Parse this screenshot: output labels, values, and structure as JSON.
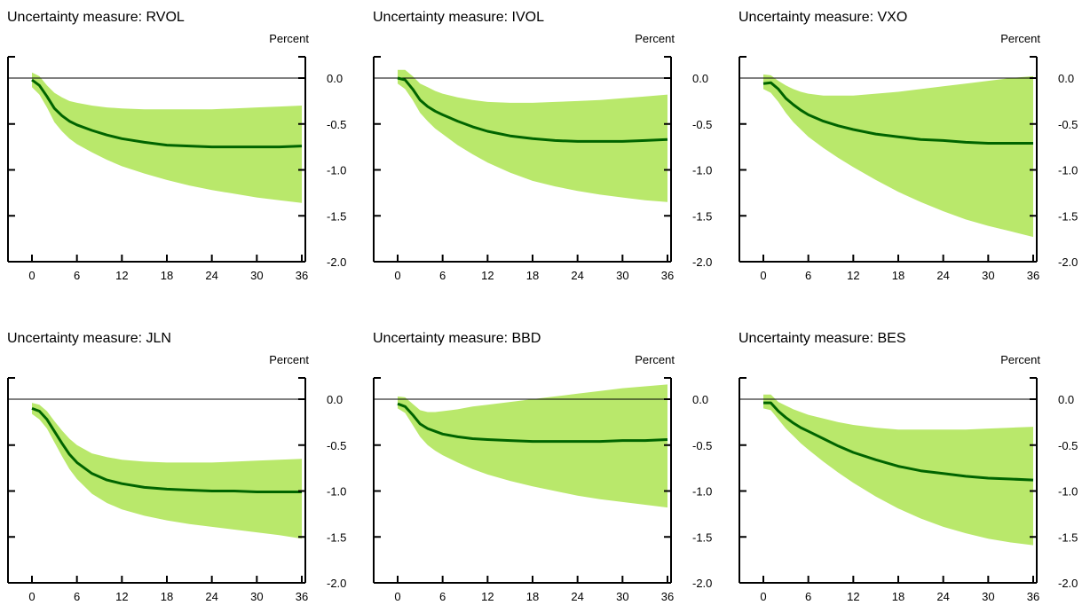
{
  "colors": {
    "band": "#b9e86b",
    "line": "#006400",
    "axis": "#000000"
  },
  "chart_data": [
    {
      "type": "area",
      "title": "Uncertainty measure: RVOL",
      "unit": "Percent",
      "x": [
        0,
        1,
        2,
        3,
        4,
        5,
        6,
        8,
        10,
        12,
        15,
        18,
        21,
        24,
        27,
        30,
        33,
        36
      ],
      "xticks": [
        "0",
        "6",
        "12",
        "18",
        "24",
        "30",
        "36"
      ],
      "yticks": [
        "0.0",
        "-0.5",
        "-1.0",
        "-1.5",
        "-2.0"
      ],
      "xlim": [
        0,
        36
      ],
      "ylim": [
        -2.0,
        0.0
      ],
      "grid": false,
      "series": [
        {
          "role": "median",
          "values": [
            -0.02,
            -0.08,
            -0.2,
            -0.33,
            -0.41,
            -0.47,
            -0.51,
            -0.57,
            -0.62,
            -0.66,
            -0.7,
            -0.73,
            -0.74,
            -0.75,
            -0.75,
            -0.75,
            -0.75,
            -0.74
          ]
        },
        {
          "role": "upper",
          "values": [
            0.06,
            0.02,
            -0.08,
            -0.16,
            -0.21,
            -0.25,
            -0.27,
            -0.3,
            -0.32,
            -0.33,
            -0.34,
            -0.34,
            -0.34,
            -0.34,
            -0.33,
            -0.32,
            -0.31,
            -0.3
          ]
        },
        {
          "role": "lower",
          "values": [
            -0.1,
            -0.18,
            -0.32,
            -0.48,
            -0.58,
            -0.66,
            -0.72,
            -0.81,
            -0.89,
            -0.96,
            -1.04,
            -1.11,
            -1.17,
            -1.22,
            -1.26,
            -1.3,
            -1.33,
            -1.36
          ]
        }
      ]
    },
    {
      "type": "area",
      "title": "Uncertainty measure: IVOL",
      "unit": "Percent",
      "x": [
        0,
        1,
        2,
        3,
        4,
        5,
        6,
        8,
        10,
        12,
        15,
        18,
        21,
        24,
        27,
        30,
        33,
        36
      ],
      "xticks": [
        "0",
        "6",
        "12",
        "18",
        "24",
        "30",
        "36"
      ],
      "yticks": [
        "0.0",
        "-0.5",
        "-1.0",
        "-1.5",
        "-2.0"
      ],
      "xlim": [
        0,
        36
      ],
      "ylim": [
        -2.0,
        0.0
      ],
      "grid": false,
      "series": [
        {
          "role": "median",
          "values": [
            0.0,
            -0.02,
            -0.12,
            -0.24,
            -0.31,
            -0.36,
            -0.4,
            -0.47,
            -0.53,
            -0.58,
            -0.63,
            -0.66,
            -0.68,
            -0.69,
            -0.69,
            -0.69,
            -0.68,
            -0.67
          ]
        },
        {
          "role": "upper",
          "values": [
            0.09,
            0.09,
            0.02,
            -0.06,
            -0.1,
            -0.14,
            -0.17,
            -0.21,
            -0.24,
            -0.26,
            -0.27,
            -0.27,
            -0.26,
            -0.25,
            -0.24,
            -0.22,
            -0.2,
            -0.18
          ]
        },
        {
          "role": "lower",
          "values": [
            -0.06,
            -0.12,
            -0.24,
            -0.38,
            -0.47,
            -0.55,
            -0.61,
            -0.73,
            -0.83,
            -0.92,
            -1.03,
            -1.12,
            -1.18,
            -1.23,
            -1.27,
            -1.3,
            -1.33,
            -1.35
          ]
        }
      ]
    },
    {
      "type": "area",
      "title": "Uncertainty measure: VXO",
      "unit": "Percent",
      "x": [
        0,
        1,
        2,
        3,
        4,
        5,
        6,
        8,
        10,
        12,
        15,
        18,
        21,
        24,
        27,
        30,
        33,
        36
      ],
      "xticks": [
        "0",
        "6",
        "12",
        "18",
        "24",
        "30",
        "36"
      ],
      "yticks": [
        "0.0",
        "-0.5",
        "-1.0",
        "-1.5",
        "-2.0"
      ],
      "xlim": [
        0,
        36
      ],
      "ylim": [
        -2.0,
        0.0
      ],
      "grid": false,
      "series": [
        {
          "role": "median",
          "values": [
            -0.06,
            -0.05,
            -0.12,
            -0.22,
            -0.29,
            -0.35,
            -0.4,
            -0.47,
            -0.52,
            -0.56,
            -0.61,
            -0.64,
            -0.67,
            -0.68,
            -0.7,
            -0.71,
            -0.71,
            -0.71
          ]
        },
        {
          "role": "upper",
          "values": [
            0.04,
            0.03,
            -0.03,
            -0.08,
            -0.12,
            -0.15,
            -0.17,
            -0.19,
            -0.19,
            -0.19,
            -0.17,
            -0.15,
            -0.12,
            -0.09,
            -0.06,
            -0.03,
            0.0,
            0.02
          ]
        },
        {
          "role": "lower",
          "values": [
            -0.12,
            -0.16,
            -0.26,
            -0.38,
            -0.48,
            -0.56,
            -0.64,
            -0.76,
            -0.87,
            -0.97,
            -1.11,
            -1.24,
            -1.35,
            -1.45,
            -1.54,
            -1.61,
            -1.67,
            -1.73
          ]
        }
      ]
    },
    {
      "type": "area",
      "title": "Uncertainty measure: JLN",
      "unit": "Percent",
      "x": [
        0,
        1,
        2,
        3,
        4,
        5,
        6,
        8,
        10,
        12,
        15,
        18,
        21,
        24,
        27,
        30,
        33,
        36
      ],
      "xticks": [
        "0",
        "6",
        "12",
        "18",
        "24",
        "30",
        "36"
      ],
      "yticks": [
        "0.0",
        "-0.5",
        "-1.0",
        "-1.5",
        "-2.0"
      ],
      "xlim": [
        0,
        36
      ],
      "ylim": [
        -2.0,
        0.0
      ],
      "grid": false,
      "series": [
        {
          "role": "median",
          "values": [
            -0.1,
            -0.13,
            -0.22,
            -0.35,
            -0.48,
            -0.6,
            -0.69,
            -0.81,
            -0.88,
            -0.92,
            -0.96,
            -0.98,
            -0.99,
            -1.0,
            -1.0,
            -1.01,
            -1.01,
            -1.01
          ]
        },
        {
          "role": "upper",
          "values": [
            -0.04,
            -0.06,
            -0.13,
            -0.24,
            -0.34,
            -0.43,
            -0.5,
            -0.59,
            -0.63,
            -0.66,
            -0.68,
            -0.69,
            -0.69,
            -0.69,
            -0.68,
            -0.67,
            -0.66,
            -0.65
          ]
        },
        {
          "role": "lower",
          "values": [
            -0.16,
            -0.22,
            -0.32,
            -0.47,
            -0.62,
            -0.76,
            -0.87,
            -1.03,
            -1.13,
            -1.2,
            -1.27,
            -1.32,
            -1.36,
            -1.39,
            -1.42,
            -1.45,
            -1.48,
            -1.52
          ]
        }
      ]
    },
    {
      "type": "area",
      "title": "Uncertainty measure: BBD",
      "unit": "Percent",
      "x": [
        0,
        1,
        2,
        3,
        4,
        5,
        6,
        8,
        10,
        12,
        15,
        18,
        21,
        24,
        27,
        30,
        33,
        36
      ],
      "xticks": [
        "0",
        "6",
        "12",
        "18",
        "24",
        "30",
        "36"
      ],
      "yticks": [
        "0.0",
        "-0.5",
        "-1.0",
        "-1.5",
        "-2.0"
      ],
      "xlim": [
        0,
        36
      ],
      "ylim": [
        -2.0,
        0.0
      ],
      "grid": false,
      "series": [
        {
          "role": "median",
          "values": [
            -0.05,
            -0.08,
            -0.17,
            -0.27,
            -0.32,
            -0.35,
            -0.38,
            -0.41,
            -0.43,
            -0.44,
            -0.45,
            -0.46,
            -0.46,
            -0.46,
            -0.46,
            -0.45,
            -0.45,
            -0.44
          ]
        },
        {
          "role": "upper",
          "values": [
            0.03,
            0.02,
            -0.05,
            -0.12,
            -0.14,
            -0.14,
            -0.13,
            -0.11,
            -0.08,
            -0.06,
            -0.03,
            0.0,
            0.03,
            0.06,
            0.09,
            0.12,
            0.14,
            0.16
          ]
        },
        {
          "role": "lower",
          "values": [
            -0.1,
            -0.15,
            -0.28,
            -0.41,
            -0.5,
            -0.56,
            -0.61,
            -0.69,
            -0.76,
            -0.82,
            -0.89,
            -0.95,
            -1.0,
            -1.05,
            -1.09,
            -1.12,
            -1.15,
            -1.18
          ]
        }
      ]
    },
    {
      "type": "area",
      "title": "Uncertainty measure: BES",
      "unit": "Percent",
      "x": [
        0,
        1,
        2,
        3,
        4,
        5,
        6,
        8,
        10,
        12,
        15,
        18,
        21,
        24,
        27,
        30,
        33,
        36
      ],
      "xticks": [
        "0",
        "6",
        "12",
        "18",
        "24",
        "30",
        "36"
      ],
      "yticks": [
        "0.0",
        "-0.5",
        "-1.0",
        "-1.5",
        "-2.0"
      ],
      "xlim": [
        0,
        36
      ],
      "ylim": [
        -2.0,
        0.0
      ],
      "grid": false,
      "series": [
        {
          "role": "median",
          "values": [
            -0.04,
            -0.04,
            -0.13,
            -0.2,
            -0.26,
            -0.31,
            -0.35,
            -0.43,
            -0.51,
            -0.58,
            -0.66,
            -0.73,
            -0.78,
            -0.81,
            -0.84,
            -0.86,
            -0.87,
            -0.88
          ]
        },
        {
          "role": "upper",
          "values": [
            0.05,
            0.05,
            -0.03,
            -0.07,
            -0.11,
            -0.14,
            -0.17,
            -0.21,
            -0.25,
            -0.28,
            -0.31,
            -0.33,
            -0.33,
            -0.33,
            -0.33,
            -0.32,
            -0.31,
            -0.3
          ]
        },
        {
          "role": "lower",
          "values": [
            -0.1,
            -0.12,
            -0.22,
            -0.32,
            -0.4,
            -0.48,
            -0.55,
            -0.68,
            -0.8,
            -0.91,
            -1.06,
            -1.19,
            -1.3,
            -1.39,
            -1.46,
            -1.52,
            -1.56,
            -1.59
          ]
        }
      ]
    }
  ]
}
